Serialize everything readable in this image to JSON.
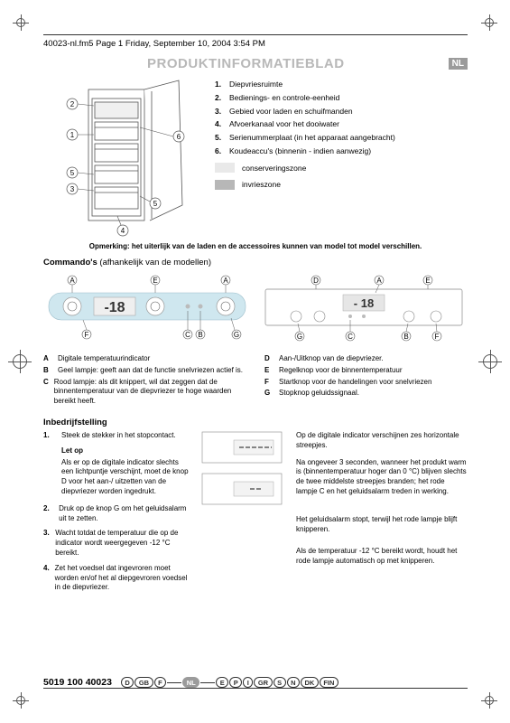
{
  "header_line": "40023-nl.fm5  Page 1  Friday, September 10, 2004  3:54 PM",
  "title": "PRODUKTINFORMATIEBLAD",
  "lang_badge": "NL",
  "parts": [
    {
      "n": "1.",
      "t": "Diepvriesruimte"
    },
    {
      "n": "2.",
      "t": "Bedienings- en controle-eenheid"
    },
    {
      "n": "3.",
      "t": "Gebied voor laden en schuifmanden"
    },
    {
      "n": "4.",
      "t": "Afvoerkanaal voor het dooiwater"
    },
    {
      "n": "5.",
      "t": "Serienummerplaat (in het apparaat aangebracht)"
    },
    {
      "n": "6.",
      "t": "Koudeaccu's (binnenin - indien aanwezig)"
    }
  ],
  "zones": [
    {
      "color": "#e9e9e9",
      "label": "conserveringszone"
    },
    {
      "color": "#b7b7b7",
      "label": "invrieszone"
    }
  ],
  "note": "Opmerking: het uiterlijk van de laden en de accessoires kunnen van model tot model verschillen.",
  "commandos_h_b": "Commando's",
  "commandos_h_r": " (afhankelijk van de modellen)",
  "panel1": {
    "display": "-18",
    "top_labels": [
      "A",
      "E",
      "A"
    ],
    "bottom_labels": [
      "F",
      "C",
      "B",
      "G"
    ],
    "track_color": "#cfe7ef",
    "circle_stroke": "#aaaaaa",
    "knob_stroke": "#666666",
    "lcd_bg": "#efefef"
  },
  "panel2": {
    "display": "- 18",
    "top_labels": [
      "D",
      "A",
      "E"
    ],
    "bottom_labels": [
      "G",
      "C",
      "B",
      "F"
    ],
    "lcd_bg": "#e6e6e6"
  },
  "legendL": [
    {
      "l": "A",
      "t": "Digitale temperatuurindicator"
    },
    {
      "l": "B",
      "t": "Geel lampje: geeft aan dat de functie snelvriezen actief is."
    },
    {
      "l": "C",
      "t": "Rood lampje: als dit knippert, wil dat zeggen dat de binnentemperatuur van de diepvriezer te hoge waarden bereikt heeft."
    }
  ],
  "legendR": [
    {
      "l": "D",
      "t": "Aan-/Uitknop van de diepvriezer."
    },
    {
      "l": "E",
      "t": "Regelknop voor de binnentemperatuur"
    },
    {
      "l": "F",
      "t": "Startknop voor de handelingen voor snelvriezen"
    },
    {
      "l": "G",
      "t": "Stopknop geluidssignaal."
    }
  ],
  "inbedrijf_h": "Inbedrijfstelling",
  "stepsL": [
    {
      "n": "1.",
      "t": "Steek de stekker in het stopcontact."
    },
    {
      "letop": "Let op"
    },
    {
      "indent": "Als er op de digitale indicator slechts een lichtpuntje verschijnt, moet de knop D voor het aan-/ uitzetten van de diepvriezer worden ingedrukt."
    },
    {
      "n": "2.",
      "t": "Druk op de knop G om het geluidsalarm uit te zetten."
    },
    {
      "n": "3.",
      "t": "Wacht totdat de temperatuur die op de indicator wordt weergegeven -12 °C bereikt."
    },
    {
      "n": "4.",
      "t": "Zet het voedsel dat ingevroren moet worden en/of het al diepgevroren voedsel in de diepvriezer."
    }
  ],
  "colR": [
    "Op de digitale indicator verschijnen zes horizontale streepjes.",
    "Na ongeveer 3 seconden, wanneer het produkt warm is (binnentemperatuur hoger dan 0 °C) blijven slechts de twee middelste streepjes branden; het rode lampje C en het geluidsalarm treden in werking.",
    "Het geluidsalarm stopt, terwijl het rode lampje blijft knipperen.",
    "Als de temperatuur -12 °C bereikt wordt, houdt het rode lampje automatisch op met knipperen."
  ],
  "mini": [
    {
      "segs": "six"
    },
    {
      "segs": "two"
    }
  ],
  "footer_num": "5019 100 40023",
  "footer_pills": [
    "D",
    "GB",
    "F",
    "NL",
    "E",
    "P",
    "I",
    "GR",
    "S",
    "N",
    "DK",
    "FIN"
  ],
  "footer_active": "NL"
}
